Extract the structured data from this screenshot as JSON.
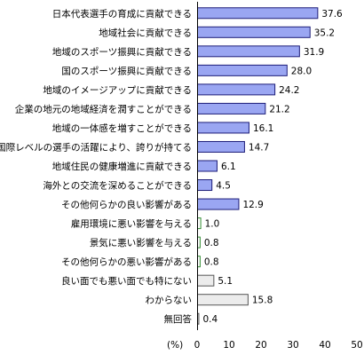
{
  "chart_data": {
    "type": "bar",
    "orientation": "horizontal",
    "categories": [
      "日本代表選手の育成に貢献できる",
      "地域社会に貢献できる",
      "地域のスポーツ振興に貢献できる",
      "国のスポーツ振興に貢献できる",
      "地域のイメージアップに貢献できる",
      "企業の地元の地域経済を潤すことができる",
      "地域の一体感を増すことができる",
      "国際レベルの選手の活躍により、誇りが持てる",
      "地域住民の健康増進に貢献できる",
      "海外との交流を深めることができる",
      "その他何らかの良い影響がある",
      "雇用環境に悪い影響を与える",
      "景気に悪い影響を与える",
      "その他何らかの悪い影響がある",
      "良い面でも悪い面でも特にない",
      "わからない",
      "無回答"
    ],
    "values": [
      37.6,
      35.2,
      31.9,
      28.0,
      24.2,
      21.2,
      16.1,
      14.7,
      6.1,
      4.5,
      12.9,
      1.0,
      0.8,
      0.8,
      5.1,
      15.8,
      0.4
    ],
    "value_labels": [
      "37.6",
      "35.2",
      "31.9",
      "28.0",
      "24.2",
      "21.2",
      "16.1",
      "14.7",
      "6.1",
      "4.5",
      "12.9",
      "1.0",
      "0.8",
      "0.8",
      "5.1",
      "15.8",
      "0.4"
    ],
    "groups": [
      "good",
      "good",
      "good",
      "good",
      "good",
      "good",
      "good",
      "good",
      "good",
      "good",
      "good",
      "bad",
      "bad",
      "bad",
      "neutral",
      "neutral",
      "neutral"
    ],
    "colors": {
      "good_fill": "#9aa6f2",
      "good_stroke": "#1c1c78",
      "bad_fill": "#ffffff",
      "bad_stroke": "#2e8b2e",
      "neutral_fill": "#ececec",
      "neutral_stroke": "#555555"
    },
    "xlim": [
      0,
      50
    ],
    "x_ticks": [
      0,
      10,
      20,
      30,
      40,
      50
    ],
    "unit_label": "(%)",
    "grid": false
  }
}
